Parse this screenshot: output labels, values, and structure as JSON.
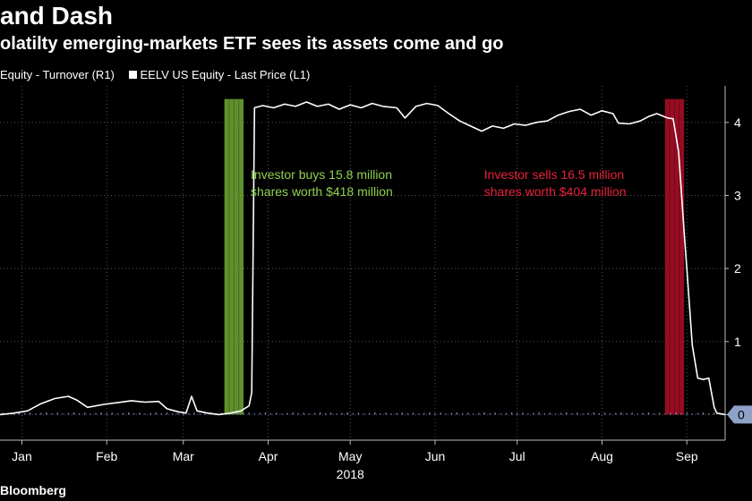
{
  "header": {
    "title": "and Dash",
    "subtitle": "olatilty emerging-markets ETF sees its assets come and go"
  },
  "legend": {
    "turnover": "Equity - Turnover (R1)",
    "price": "EELV US Equity - Last Price (L1)"
  },
  "footer": {
    "source": "Bloomberg"
  },
  "colors": {
    "background": "#000000",
    "price_line": "#ffffff",
    "turnover_bars": "#6f86b5",
    "buy_band": "#7ec23a",
    "buy_text": "#8fd14f",
    "sell_band": "#c8102e",
    "sell_text": "#e8203a",
    "grid": "#555555",
    "last_value_badge": "#8fa3c8"
  },
  "chart_data": {
    "type": "line",
    "title": "and Dash",
    "subtitle": "olatilty emerging-markets ETF sees its assets come and go",
    "x_axis": {
      "year_label": "2018",
      "month_ticks": [
        "Jan",
        "Feb",
        "Mar",
        "Apr",
        "May",
        "Jun",
        "Jul",
        "Aug",
        "Sep"
      ],
      "month_tick_days": [
        8,
        39,
        67,
        98,
        128,
        159,
        189,
        220,
        251
      ],
      "range_days": [
        0,
        265
      ]
    },
    "y_axis_right": {
      "tick_labels": [
        "4",
        "3",
        "2",
        "1",
        "0"
      ],
      "tick_values": [
        4,
        3,
        2,
        1,
        0
      ],
      "ylim": [
        -0.35,
        4.5
      ]
    },
    "grid": true,
    "legend_position": "top-left",
    "series": [
      {
        "name": "EELV US Equity - Last Price (L1)",
        "points": [
          [
            0,
            0.0
          ],
          [
            5,
            0.02
          ],
          [
            10,
            0.05
          ],
          [
            15,
            0.15
          ],
          [
            20,
            0.22
          ],
          [
            25,
            0.25
          ],
          [
            28,
            0.2
          ],
          [
            32,
            0.1
          ],
          [
            38,
            0.14
          ],
          [
            42,
            0.16
          ],
          [
            48,
            0.19
          ],
          [
            53,
            0.17
          ],
          [
            58,
            0.18
          ],
          [
            61,
            0.08
          ],
          [
            65,
            0.04
          ],
          [
            68,
            0.02
          ],
          [
            70,
            0.25
          ],
          [
            72,
            0.05
          ],
          [
            76,
            0.02
          ],
          [
            80,
            0.0
          ],
          [
            84,
            0.02
          ],
          [
            88,
            0.05
          ],
          [
            91,
            0.12
          ],
          [
            92,
            0.3
          ],
          [
            93,
            4.2
          ],
          [
            96,
            4.23
          ],
          [
            100,
            4.2
          ],
          [
            104,
            4.25
          ],
          [
            108,
            4.22
          ],
          [
            112,
            4.28
          ],
          [
            116,
            4.22
          ],
          [
            120,
            4.25
          ],
          [
            124,
            4.18
          ],
          [
            128,
            4.24
          ],
          [
            132,
            4.2
          ],
          [
            136,
            4.26
          ],
          [
            140,
            4.22
          ],
          [
            145,
            4.2
          ],
          [
            148,
            4.06
          ],
          [
            152,
            4.22
          ],
          [
            156,
            4.26
          ],
          [
            160,
            4.23
          ],
          [
            164,
            4.12
          ],
          [
            168,
            4.02
          ],
          [
            172,
            3.95
          ],
          [
            176,
            3.88
          ],
          [
            180,
            3.95
          ],
          [
            184,
            3.92
          ],
          [
            188,
            3.98
          ],
          [
            192,
            3.96
          ],
          [
            196,
            4.0
          ],
          [
            200,
            4.02
          ],
          [
            204,
            4.1
          ],
          [
            208,
            4.15
          ],
          [
            212,
            4.18
          ],
          [
            216,
            4.1
          ],
          [
            220,
            4.16
          ],
          [
            224,
            4.12
          ],
          [
            226,
            3.99
          ],
          [
            230,
            3.98
          ],
          [
            234,
            4.02
          ],
          [
            237,
            4.08
          ],
          [
            240,
            4.12
          ],
          [
            244,
            4.06
          ],
          [
            246,
            4.05
          ],
          [
            248,
            3.6
          ],
          [
            250,
            2.5
          ],
          [
            251,
            2.0
          ],
          [
            253,
            0.95
          ],
          [
            255,
            0.5
          ],
          [
            257,
            0.48
          ],
          [
            259,
            0.5
          ],
          [
            261,
            0.1
          ],
          [
            262,
            0.02
          ],
          [
            265,
            0.0
          ]
        ]
      },
      {
        "name": "Equity - Turnover (R1)",
        "bar_value_approx": 0.02,
        "notable_bar_day": 62
      }
    ],
    "annotations": [
      {
        "kind": "buy",
        "band_days": [
          82,
          89
        ],
        "text_lines": [
          "Investor buys 15.8 million",
          "shares worth $418 million"
        ]
      },
      {
        "kind": "sell",
        "band_days": [
          243,
          250
        ],
        "text_lines": [
          "Investor sells 16.5 million",
          "shares worth $404 million"
        ]
      }
    ],
    "last_value_label": "0"
  }
}
